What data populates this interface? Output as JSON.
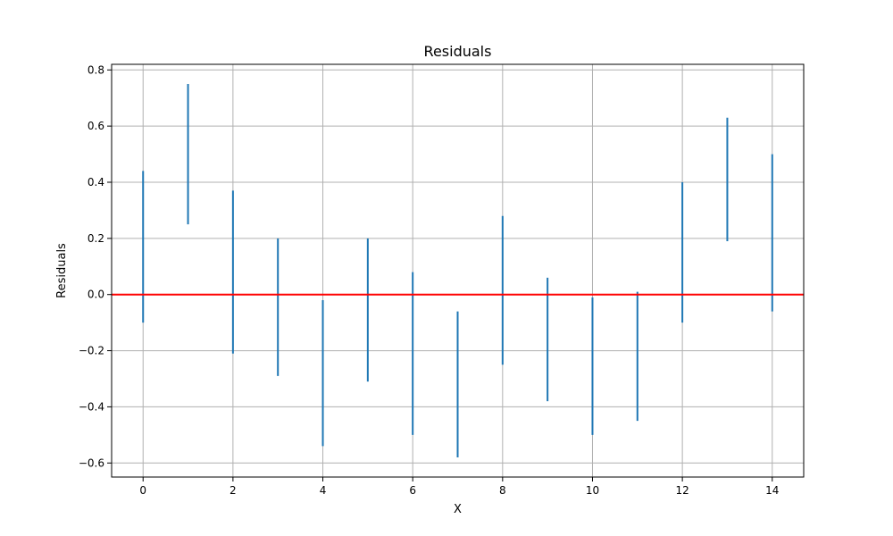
{
  "chart_data": {
    "type": "vlines",
    "title": "Residuals",
    "xlabel": "X",
    "ylabel": "Residuals",
    "xlim": [
      -0.7,
      14.7
    ],
    "ylim": [
      -0.65,
      0.82
    ],
    "xticks": [
      0,
      2,
      4,
      6,
      8,
      10,
      12,
      14
    ],
    "yticks": [
      -0.6,
      -0.4,
      -0.2,
      0.0,
      0.2,
      0.4,
      0.6,
      0.8
    ],
    "xtick_labels": [
      "0",
      "2",
      "4",
      "6",
      "8",
      "10",
      "12",
      "14"
    ],
    "ytick_labels": [
      "−0.6",
      "−0.4",
      "−0.2",
      "0.0",
      "0.2",
      "0.4",
      "0.6",
      "0.8"
    ],
    "grid": true,
    "reference_line": {
      "y": 0.0,
      "color": "#ff0000"
    },
    "series": [
      {
        "color": "#1f77b4",
        "x": [
          0,
          1,
          2,
          3,
          4,
          5,
          6,
          7,
          8,
          9,
          10,
          11,
          12,
          13,
          14
        ],
        "ymin": [
          -0.1,
          0.25,
          -0.21,
          -0.29,
          -0.54,
          -0.31,
          -0.5,
          -0.58,
          -0.25,
          -0.38,
          -0.5,
          -0.45,
          -0.1,
          0.19,
          -0.06
        ],
        "ymax": [
          0.44,
          0.75,
          0.37,
          0.2,
          -0.02,
          0.2,
          0.08,
          -0.06,
          0.28,
          0.06,
          -0.01,
          0.01,
          0.4,
          0.63,
          0.5
        ]
      }
    ]
  }
}
